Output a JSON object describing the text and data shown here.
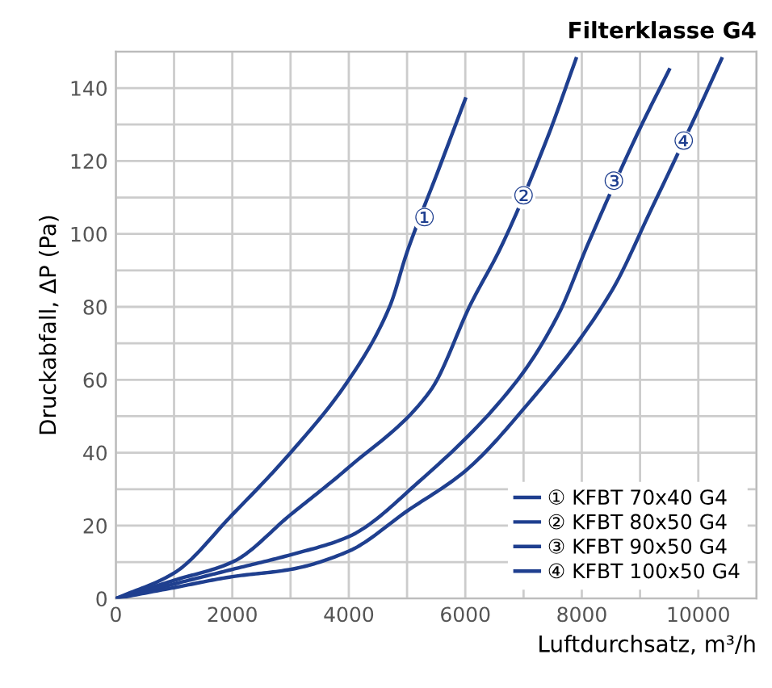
{
  "chart_data": {
    "type": "line",
    "title": "Filterklasse G4",
    "xlabel": "Luftdurchsatz, m³/h",
    "ylabel": "Druckabfall, ΔP (Pa)",
    "xlim": [
      0,
      11000
    ],
    "xticks": [
      0,
      2000,
      4000,
      6000,
      8000,
      10000
    ],
    "ylim": [
      0,
      150
    ],
    "yticks": [
      0,
      20,
      40,
      60,
      80,
      100,
      120,
      140
    ],
    "grid": true,
    "legend": "bottom right",
    "line_style": "solid",
    "marker": "none",
    "series": [
      {
        "name": "① KFBT 70x40 G4",
        "color": "#1f3f8f",
        "x": [
          0,
          1000,
          2000,
          3000,
          4000,
          4700,
          5000,
          5550,
          6000
        ],
        "values": [
          0,
          7,
          23,
          40,
          60,
          80,
          95,
          118,
          137
        ]
      },
      {
        "name": "② KFBT 80x50 G4",
        "color": "#1f3f8f",
        "x": [
          0,
          1000,
          2000,
          3000,
          4000,
          5400,
          6100,
          6600,
          7400,
          7900
        ],
        "values": [
          0,
          5,
          10,
          23,
          36,
          57,
          81,
          96,
          126,
          148
        ]
      },
      {
        "name": "③ KFBT 90x50 G4",
        "color": "#1f3f8f",
        "x": [
          0,
          1000,
          2000,
          3000,
          4000,
          5200,
          6900,
          7600,
          8100,
          9000,
          9500
        ],
        "values": [
          0,
          4,
          8,
          12,
          17,
          32,
          60,
          78,
          97,
          129,
          145
        ]
      },
      {
        "name": "④ KFBT 100x50 G4",
        "color": "#1f3f8f",
        "x": [
          0,
          1000,
          2000,
          3000,
          4000,
          5000,
          6000,
          7000,
          8500,
          9200,
          10000,
          10400
        ],
        "values": [
          0,
          3,
          6,
          8,
          13,
          24,
          35,
          52,
          84,
          107,
          134,
          148
        ]
      }
    ],
    "annotations": [
      {
        "text": "①",
        "x": 5300,
        "y": 104
      },
      {
        "text": "②",
        "x": 7000,
        "y": 110
      },
      {
        "text": "③",
        "x": 8550,
        "y": 114
      },
      {
        "text": "④",
        "x": 9750,
        "y": 125
      }
    ]
  }
}
